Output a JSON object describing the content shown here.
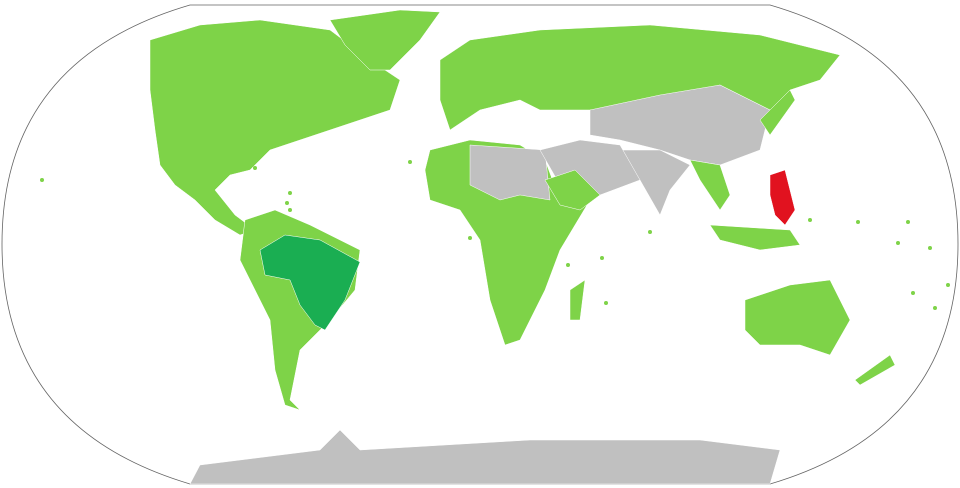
{
  "map": {
    "projection": "robinson",
    "colors": {
      "ocean": "#ffffff",
      "outline": "#646464",
      "member": "#7ed348",
      "highlight_primary": "#1aae52",
      "highlight_secondary": "#e1121f",
      "other": "#c0c0c0",
      "special": "#a6dbe6"
    },
    "regions": [
      {
        "name": "north-america",
        "status": "member"
      },
      {
        "name": "greenland",
        "status": "member"
      },
      {
        "name": "south-america",
        "status": "member"
      },
      {
        "name": "brazil",
        "status": "highlight_primary"
      },
      {
        "name": "europe-russia",
        "status": "member"
      },
      {
        "name": "china-central-asia",
        "status": "other"
      },
      {
        "name": "india",
        "status": "other"
      },
      {
        "name": "africa",
        "status": "member"
      },
      {
        "name": "north-africa",
        "status": "other"
      },
      {
        "name": "middle-east",
        "status": "other"
      },
      {
        "name": "arabian-peninsula",
        "status": "member"
      },
      {
        "name": "southeast-asia",
        "status": "member"
      },
      {
        "name": "indonesia",
        "status": "member"
      },
      {
        "name": "australia",
        "status": "member"
      },
      {
        "name": "new-zealand",
        "status": "member"
      },
      {
        "name": "japan",
        "status": "member"
      },
      {
        "name": "philippines",
        "status": "highlight_secondary"
      },
      {
        "name": "madagascar",
        "status": "member"
      },
      {
        "name": "antarctica",
        "status": "other"
      }
    ]
  }
}
